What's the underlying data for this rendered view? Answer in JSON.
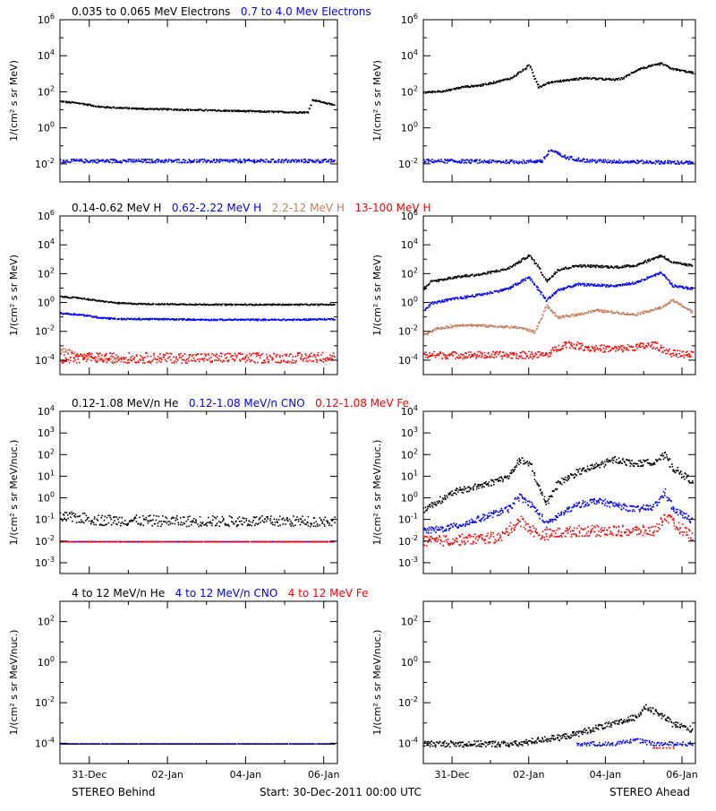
{
  "colors": {
    "black": "#000000",
    "blue": "#0000ff",
    "tan": "#c08060",
    "red": "#ff0000"
  },
  "figure": {
    "footer_left": "STEREO Behind",
    "footer_center": "Start: 30-Dec-2011 00:00 UTC",
    "footer_right": "STEREO Ahead"
  },
  "chart_data": [
    {
      "type": "scatter",
      "panel": "electrons-behind",
      "legend_inline": [
        {
          "text": "0.035 to 0.065 MeV Electrons",
          "color": "#000000"
        },
        {
          "text": "0.7 to 4.0 Mev Electrons",
          "color": "#0000ff"
        }
      ],
      "ylabel": "1/(cm² s sr MeV)",
      "yscale": "log",
      "ylim_exp": [
        -3,
        6
      ],
      "ytick_exps": [
        -2,
        0,
        2,
        4,
        6
      ],
      "x_ticks": [
        "31-Dec",
        "02-Jan",
        "04-Jan",
        "06-Jan"
      ],
      "x_days_range": [
        0,
        7.1
      ],
      "series": [
        {
          "color": "#000000",
          "x": [
            0.0,
            0.5,
            1.0,
            2.0,
            3.0,
            4.0,
            5.0,
            6.0,
            6.35,
            6.45,
            7.0
          ],
          "y_exp": [
            1.5,
            1.4,
            1.2,
            1.1,
            1.05,
            1.0,
            0.95,
            0.9,
            0.9,
            1.6,
            1.3
          ],
          "spread": 0.04,
          "density": 7
        },
        {
          "color": "#0000ff",
          "x": [
            0.0,
            2.0,
            4.0,
            6.0,
            7.0
          ],
          "y_exp": [
            -1.8,
            -1.8,
            -1.8,
            -1.8,
            -1.8
          ],
          "spread": 0.1,
          "density": 7
        }
      ]
    },
    {
      "type": "scatter",
      "panel": "electrons-ahead",
      "ylabel": "1/(cm² s sr MeV)",
      "yscale": "log",
      "ylim_exp": [
        -3,
        6
      ],
      "ytick_exps": [
        -2,
        0,
        2,
        4,
        6
      ],
      "x_ticks": [
        "31-Dec",
        "02-Jan",
        "04-Jan",
        "06-Jan"
      ],
      "x_days_range": [
        0,
        7.1
      ],
      "series": [
        {
          "color": "#000000",
          "x": [
            0.0,
            0.6,
            1.0,
            1.5,
            2.3,
            2.75,
            3.0,
            3.2,
            3.4,
            3.8,
            4.2,
            5.0,
            5.2,
            5.6,
            6.2,
            6.5,
            7.0
          ],
          "y_exp": [
            2.0,
            2.1,
            2.3,
            2.4,
            2.8,
            3.5,
            2.3,
            2.5,
            2.6,
            2.7,
            2.8,
            2.7,
            2.8,
            3.3,
            3.6,
            3.3,
            3.1
          ],
          "spread": 0.05,
          "density": 7
        },
        {
          "color": "#0000ff",
          "x": [
            0.0,
            2.5,
            3.1,
            3.3,
            3.7,
            4.3,
            7.0
          ],
          "y_exp": [
            -1.8,
            -1.85,
            -1.8,
            -1.2,
            -1.6,
            -1.8,
            -1.9
          ],
          "spread": 0.1,
          "density": 7
        }
      ]
    },
    {
      "type": "scatter",
      "panel": "protons-behind",
      "legend_inline": [
        {
          "text": "0.14-0.62 MeV H",
          "color": "#000000"
        },
        {
          "text": "0.62-2.22 MeV H",
          "color": "#0000ff"
        },
        {
          "text": "2.2-12 MeV H",
          "color": "#c08060"
        },
        {
          "text": "13-100 MeV H",
          "color": "#ff0000"
        }
      ],
      "ylabel": "1/(cm² s sr MeV)",
      "yscale": "log",
      "ylim_exp": [
        -5,
        6
      ],
      "ytick_exps": [
        -4,
        -2,
        0,
        2,
        4,
        6
      ],
      "x_ticks": [
        "31-Dec",
        "02-Jan",
        "04-Jan",
        "06-Jan"
      ],
      "x_days_range": [
        0,
        7.1
      ],
      "series": [
        {
          "color": "#000000",
          "x": [
            0.0,
            0.5,
            1.0,
            1.5,
            2.0,
            4.0,
            6.0,
            7.0
          ],
          "y_exp": [
            0.45,
            0.35,
            0.15,
            0.0,
            -0.05,
            -0.1,
            -0.1,
            -0.1
          ],
          "spread": 0.04,
          "density": 7
        },
        {
          "color": "#0000ff",
          "x": [
            0.0,
            0.5,
            1.0,
            1.5,
            2.0,
            4.0,
            6.0,
            7.0
          ],
          "y_exp": [
            -0.7,
            -0.8,
            -1.0,
            -1.1,
            -1.1,
            -1.15,
            -1.15,
            -1.1
          ],
          "spread": 0.05,
          "density": 7
        },
        {
          "color": "#c08060",
          "x": [
            0.0,
            0.3,
            0.6,
            1.0,
            1.4
          ],
          "y_exp": [
            -3.2,
            -3.4,
            -3.7,
            -3.9,
            -4.0
          ],
          "spread": 0.15,
          "density": 6
        },
        {
          "color": "#ff0000",
          "x": [
            0.0,
            2.0,
            4.0,
            6.0,
            7.0
          ],
          "y_exp": [
            -3.8,
            -3.8,
            -3.8,
            -3.8,
            -3.7
          ],
          "spread": 0.35,
          "density": 7
        }
      ]
    },
    {
      "type": "scatter",
      "panel": "protons-ahead",
      "ylabel": "1/(cm² s sr MeV)",
      "yscale": "log",
      "ylim_exp": [
        -5,
        6
      ],
      "ytick_exps": [
        -4,
        -2,
        0,
        2,
        4,
        6
      ],
      "x_ticks": [
        "31-Dec",
        "02-Jan",
        "04-Jan",
        "06-Jan"
      ],
      "x_days_range": [
        0,
        7.1
      ],
      "series": [
        {
          "color": "#000000",
          "x": [
            0.0,
            0.2,
            0.8,
            1.5,
            2.2,
            2.75,
            3.0,
            3.2,
            3.5,
            4.0,
            5.0,
            5.5,
            6.2,
            6.5,
            7.0
          ],
          "y_exp": [
            1.0,
            1.5,
            1.8,
            2.0,
            2.4,
            3.3,
            2.5,
            1.5,
            2.3,
            2.6,
            2.5,
            2.6,
            3.3,
            2.8,
            2.6
          ],
          "spread": 0.08,
          "density": 7
        },
        {
          "color": "#0000ff",
          "x": [
            0.0,
            0.2,
            0.8,
            1.5,
            2.2,
            2.75,
            3.0,
            3.2,
            3.5,
            4.0,
            5.0,
            5.5,
            6.2,
            6.5,
            7.0
          ],
          "y_exp": [
            -0.5,
            0.0,
            0.3,
            0.6,
            1.0,
            1.8,
            0.9,
            0.2,
            0.9,
            1.3,
            1.2,
            1.4,
            2.1,
            1.2,
            1.0
          ],
          "spread": 0.08,
          "density": 7
        },
        {
          "color": "#c08060",
          "x": [
            0.0,
            0.3,
            1.0,
            1.8,
            2.5,
            2.9,
            3.2,
            3.5,
            4.0,
            4.5,
            5.5,
            6.2,
            6.5,
            7.0
          ],
          "y_exp": [
            -2.2,
            -1.8,
            -1.5,
            -1.6,
            -1.7,
            -2.0,
            -0.2,
            -1.0,
            -0.8,
            -0.5,
            -0.8,
            -0.3,
            0.2,
            -0.6
          ],
          "spread": 0.08,
          "density": 7
        },
        {
          "color": "#ff0000",
          "x": [
            0.0,
            2.0,
            3.2,
            3.7,
            4.3,
            5.0,
            6.0,
            6.5,
            7.0
          ],
          "y_exp": [
            -3.6,
            -3.6,
            -3.6,
            -2.8,
            -3.1,
            -3.2,
            -2.9,
            -3.5,
            -3.6
          ],
          "spread": 0.25,
          "density": 7
        }
      ]
    },
    {
      "type": "scatter",
      "panel": "heavy-low-behind",
      "legend_inline": [
        {
          "text": "0.12-1.08 MeV/n He",
          "color": "#000000"
        },
        {
          "text": "0.12-1.08 MeV/n CNO",
          "color": "#0000ff"
        },
        {
          "text": "0.12-1.08 MeV Fe",
          "color": "#ff0000"
        }
      ],
      "ylabel": "1/(cm² s sr MeV/nuc.)",
      "yscale": "log",
      "ylim_exp": [
        -3.5,
        4
      ],
      "ytick_exps": [
        -3,
        -2,
        -1,
        0,
        1,
        2,
        3,
        4
      ],
      "x_ticks": [
        "31-Dec",
        "02-Jan",
        "04-Jan",
        "06-Jan"
      ],
      "x_days_range": [
        0,
        7.1
      ],
      "series": [
        {
          "color": "#000000",
          "x": [
            0.0,
            0.5,
            1.0,
            3.0,
            5.0,
            7.0
          ],
          "y_exp": [
            -0.85,
            -0.9,
            -1.0,
            -1.05,
            -1.05,
            -1.05
          ],
          "spread": 0.25,
          "density": 6
        },
        {
          "color": "#0000ff",
          "x": [
            0.0,
            7.0
          ],
          "y_exp": [
            -2.0,
            -2.0
          ],
          "spread": 0.0,
          "density": 6
        },
        {
          "color": "#ff0000",
          "x": [
            0.0,
            7.0
          ],
          "y_exp": [
            -2.0,
            -2.0
          ],
          "spread": 0.0,
          "density": 4
        }
      ]
    },
    {
      "type": "scatter",
      "panel": "heavy-low-ahead",
      "ylabel": "1/(cm² s sr MeV/nuc.)",
      "yscale": "log",
      "ylim_exp": [
        -3.5,
        4
      ],
      "ytick_exps": [
        -3,
        -2,
        -1,
        0,
        1,
        2,
        3,
        4
      ],
      "x_ticks": [
        "31-Dec",
        "02-Jan",
        "04-Jan",
        "06-Jan"
      ],
      "x_days_range": [
        0,
        7.1
      ],
      "series": [
        {
          "color": "#000000",
          "x": [
            0.0,
            0.3,
            0.8,
            1.5,
            2.2,
            2.5,
            2.8,
            3.0,
            3.2,
            3.5,
            4.0,
            4.5,
            5.0,
            5.5,
            6.0,
            6.3,
            6.5,
            7.0
          ],
          "y_exp": [
            -0.5,
            -0.2,
            0.3,
            0.6,
            1.0,
            1.8,
            1.5,
            0.5,
            -0.2,
            0.7,
            1.2,
            1.5,
            1.8,
            1.6,
            1.7,
            2.0,
            1.4,
            0.8
          ],
          "spread": 0.15,
          "density": 7
        },
        {
          "color": "#0000ff",
          "x": [
            0.0,
            0.5,
            1.0,
            1.5,
            2.2,
            2.5,
            2.8,
            3.0,
            3.2,
            3.5,
            4.0,
            4.5,
            5.0,
            5.5,
            6.0,
            6.3,
            6.5,
            7.0
          ],
          "y_exp": [
            -1.5,
            -1.4,
            -1.2,
            -0.9,
            -0.5,
            0.1,
            -0.3,
            -0.7,
            -1.2,
            -0.8,
            -0.3,
            -0.1,
            -0.3,
            -0.5,
            -0.4,
            0.3,
            -0.5,
            -1.0
          ],
          "spread": 0.15,
          "density": 7
        },
        {
          "color": "#ff0000",
          "x": [
            0.0,
            2.0,
            2.5,
            3.0,
            4.0,
            5.0,
            6.0,
            6.3,
            6.6,
            7.0
          ],
          "y_exp": [
            -2.0,
            -1.8,
            -1.0,
            -1.7,
            -1.5,
            -1.5,
            -1.5,
            -0.8,
            -1.3,
            -1.7
          ],
          "spread": 0.25,
          "density": 7
        }
      ]
    },
    {
      "type": "scatter",
      "panel": "heavy-high-behind",
      "legend_inline": [
        {
          "text": "4 to 12 MeV/n He",
          "color": "#000000"
        },
        {
          "text": "4 to 12 MeV/n CNO",
          "color": "#0000ff"
        },
        {
          "text": "4 to 12 MeV Fe",
          "color": "#ff0000"
        }
      ],
      "ylabel": "1/(cm² s sr MeV/nuc.)",
      "yscale": "log",
      "ylim_exp": [
        -5,
        3
      ],
      "ytick_exps": [
        -4,
        -2,
        0,
        2
      ],
      "x_ticks": [
        "31-Dec",
        "02-Jan",
        "04-Jan",
        "06-Jan"
      ],
      "x_days_range": [
        0,
        7.1
      ],
      "series": [
        {
          "color": "#000000",
          "x": [
            0.0,
            7.0
          ],
          "y_exp": [
            -4.0,
            -4.0
          ],
          "spread": 0.0,
          "density": 5
        },
        {
          "color": "#0000ff",
          "x": [
            0.0,
            7.0
          ],
          "y_exp": [
            -4.0,
            -4.0
          ],
          "spread": 0.0,
          "density": 3
        }
      ]
    },
    {
      "type": "scatter",
      "panel": "heavy-high-ahead",
      "ylabel": "1/(cm² s sr MeV/nuc.)",
      "yscale": "log",
      "ylim_exp": [
        -5,
        3
      ],
      "ytick_exps": [
        -4,
        -2,
        0,
        2
      ],
      "x_ticks": [
        "31-Dec",
        "02-Jan",
        "04-Jan",
        "06-Jan"
      ],
      "x_days_range": [
        0,
        7.1
      ],
      "series": [
        {
          "color": "#000000",
          "x": [
            0.0,
            2.5,
            3.0,
            3.5,
            4.0,
            4.5,
            5.0,
            5.5,
            5.8,
            6.2,
            6.5,
            7.0
          ],
          "y_exp": [
            -4.0,
            -4.0,
            -3.8,
            -3.7,
            -3.5,
            -3.2,
            -3.0,
            -2.7,
            -2.2,
            -2.6,
            -3.0,
            -3.3
          ],
          "spread": 0.15,
          "density": 7
        },
        {
          "color": "#0000ff",
          "x": [
            4.0,
            5.0,
            5.5,
            6.0,
            7.0
          ],
          "y_exp": [
            -4.0,
            -4.0,
            -3.8,
            -4.0,
            -4.0
          ],
          "spread": 0.1,
          "density": 5
        },
        {
          "color": "#ff0000",
          "x": [
            6.0,
            6.5
          ],
          "y_exp": [
            -4.2,
            -4.2
          ],
          "spread": 0.0,
          "density": 3
        }
      ]
    }
  ]
}
